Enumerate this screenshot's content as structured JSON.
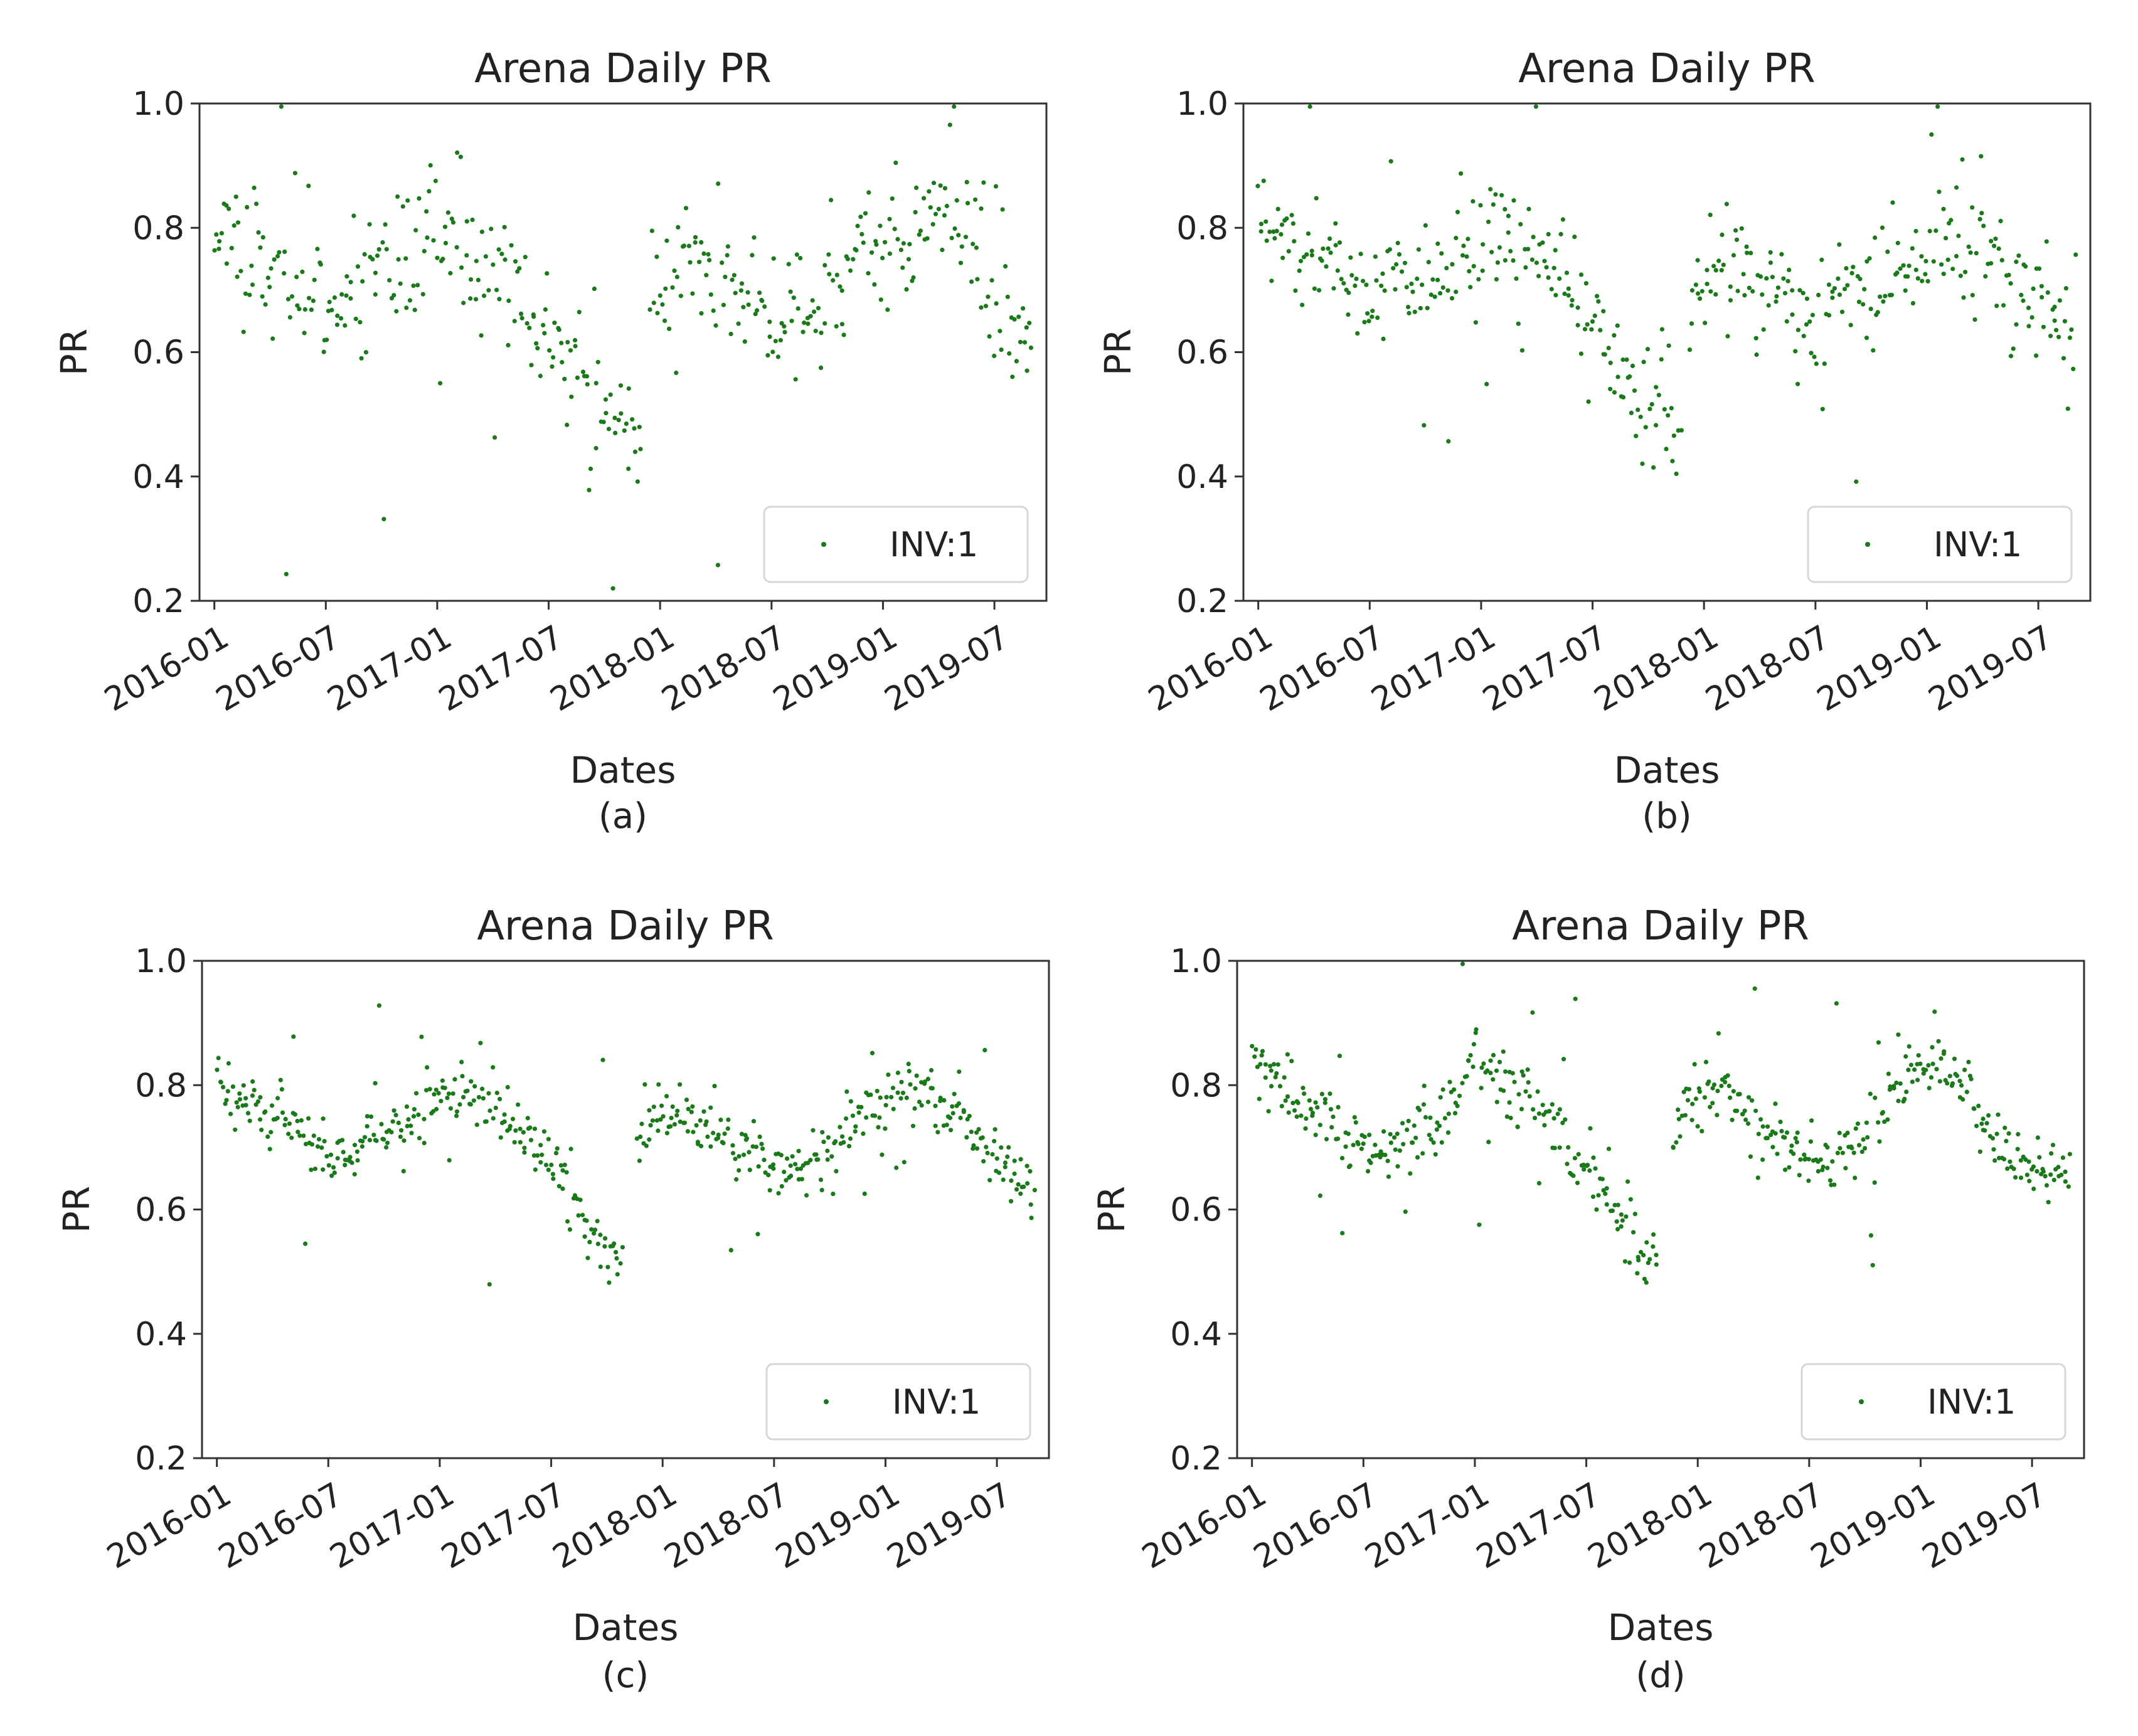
{
  "figure": {
    "panel_labels": [
      "(a)",
      "(b)",
      "(c)",
      "(d)"
    ]
  },
  "chart_data": [
    {
      "type": "scatter",
      "panel": "(a)",
      "title": "Arena Daily PR",
      "xlabel": "Dates",
      "ylabel": "PR",
      "legend": [
        "INV:1"
      ],
      "legend_position": "bottom-right",
      "point_color": "#1a7a1a",
      "x_tick_labels": [
        "2016-01",
        "2016-07",
        "2017-01",
        "2017-07",
        "2018-01",
        "2018-07",
        "2019-01",
        "2019-07"
      ],
      "y_tick_labels": [
        "0.2",
        "0.4",
        "0.6",
        "0.8",
        "1.0"
      ],
      "ylim": [
        0.2,
        1.0
      ],
      "xlim_months": [
        -0.8,
        44.8
      ],
      "series": [
        {
          "name": "INV:1",
          "trend": [
            [
              0,
              0.82
            ],
            [
              1.5,
              0.77
            ],
            [
              3,
              0.73
            ],
            [
              5,
              0.66
            ],
            [
              7,
              0.68
            ],
            [
              10,
              0.72
            ],
            [
              12,
              0.8
            ],
            [
              14,
              0.76
            ],
            [
              16,
              0.72
            ],
            [
              18,
              0.62
            ],
            [
              21,
              0.51
            ],
            [
              22.8,
              0.44
            ],
            [
              23.5,
              0.7
            ],
            [
              25,
              0.76
            ],
            [
              28,
              0.7
            ],
            [
              30,
              0.65
            ],
            [
              32,
              0.66
            ],
            [
              35,
              0.75
            ],
            [
              38,
              0.8
            ],
            [
              40,
              0.85
            ],
            [
              41.5,
              0.72
            ],
            [
              42,
              0.64
            ],
            [
              44,
              0.64
            ]
          ],
          "gaps": [
            [
              23.0,
              23.4
            ]
          ],
          "spread": 0.09,
          "n_points": 430,
          "seed": 11
        }
      ]
    },
    {
      "type": "scatter",
      "panel": "(b)",
      "title": "Arena Daily PR",
      "xlabel": "Dates",
      "ylabel": "PR",
      "legend": [
        "INV:1"
      ],
      "legend_position": "bottom-right",
      "point_color": "#1a7a1a",
      "x_tick_labels": [
        "2016-01",
        "2016-07",
        "2017-01",
        "2017-07",
        "2018-01",
        "2018-07",
        "2019-01",
        "2019-07"
      ],
      "y_tick_labels": [
        "0.2",
        "0.4",
        "0.6",
        "0.8",
        "1.0"
      ],
      "ylim": [
        0.2,
        1.0
      ],
      "xlim_months": [
        -0.8,
        44.8
      ],
      "series": [
        {
          "name": "INV:1",
          "trend": [
            [
              0,
              0.78
            ],
            [
              2,
              0.77
            ],
            [
              4,
              0.74
            ],
            [
              6,
              0.7
            ],
            [
              8,
              0.72
            ],
            [
              10,
              0.73
            ],
            [
              12,
              0.76
            ],
            [
              14,
              0.77
            ],
            [
              16,
              0.72
            ],
            [
              18,
              0.65
            ],
            [
              20,
              0.55
            ],
            [
              22.5,
              0.46
            ],
            [
              23.5,
              0.68
            ],
            [
              25,
              0.75
            ],
            [
              27,
              0.72
            ],
            [
              30,
              0.65
            ],
            [
              32,
              0.7
            ],
            [
              35,
              0.72
            ],
            [
              37,
              0.75
            ],
            [
              39,
              0.77
            ],
            [
              41,
              0.73
            ],
            [
              42,
              0.69
            ],
            [
              44,
              0.64
            ]
          ],
          "gaps": [
            [
              22.8,
              23.2
            ]
          ],
          "spread": 0.08,
          "n_points": 450,
          "seed": 23
        }
      ]
    },
    {
      "type": "scatter",
      "panel": "(c)",
      "title": "Arena Daily PR",
      "xlabel": "Dates",
      "ylabel": "PR",
      "legend": [
        "INV:1"
      ],
      "legend_position": "bottom-right",
      "point_color": "#1a7a1a",
      "x_tick_labels": [
        "2016-01",
        "2016-07",
        "2017-01",
        "2017-07",
        "2018-01",
        "2018-07",
        "2019-01",
        "2019-07"
      ],
      "y_tick_labels": [
        "0.2",
        "0.4",
        "0.6",
        "0.8",
        "1.0"
      ],
      "ylim": [
        0.2,
        1.0
      ],
      "xlim_months": [
        -0.8,
        44.8
      ],
      "series": [
        {
          "name": "INV:1",
          "trend": [
            [
              0,
              0.8
            ],
            [
              2,
              0.78
            ],
            [
              4,
              0.74
            ],
            [
              6,
              0.7
            ],
            [
              7,
              0.68
            ],
            [
              8,
              0.72
            ],
            [
              10,
              0.73
            ],
            [
              12,
              0.79
            ],
            [
              14,
              0.77
            ],
            [
              16,
              0.74
            ],
            [
              18,
              0.67
            ],
            [
              20,
              0.58
            ],
            [
              21.5,
              0.51
            ],
            [
              23,
              0.73
            ],
            [
              25,
              0.76
            ],
            [
              27,
              0.72
            ],
            [
              29,
              0.69
            ],
            [
              31,
              0.66
            ],
            [
              33,
              0.71
            ],
            [
              35,
              0.76
            ],
            [
              37,
              0.78
            ],
            [
              40,
              0.76
            ],
            [
              41,
              0.7
            ],
            [
              44,
              0.65
            ]
          ],
          "gaps": [
            [
              21.8,
              22.6
            ]
          ],
          "spread": 0.045,
          "n_points": 520,
          "seed": 37
        }
      ]
    },
    {
      "type": "scatter",
      "panel": "(d)",
      "title": "Arena Daily PR",
      "xlabel": "Dates",
      "ylabel": "PR",
      "legend": [
        "INV:1"
      ],
      "legend_position": "bottom-right",
      "point_color": "#1a7a1a",
      "x_tick_labels": [
        "2016-01",
        "2016-07",
        "2017-01",
        "2017-07",
        "2018-01",
        "2018-07",
        "2019-01",
        "2019-07"
      ],
      "y_tick_labels": [
        "0.2",
        "0.4",
        "0.6",
        "0.8",
        "1.0"
      ],
      "ylim": [
        0.2,
        1.0
      ],
      "xlim_months": [
        -0.8,
        44.8
      ],
      "series": [
        {
          "name": "INV:1",
          "trend": [
            [
              0,
              0.84
            ],
            [
              2,
              0.79
            ],
            [
              4,
              0.74
            ],
            [
              6,
              0.7
            ],
            [
              7,
              0.68
            ],
            [
              8,
              0.72
            ],
            [
              10,
              0.74
            ],
            [
              12,
              0.85
            ],
            [
              14,
              0.8
            ],
            [
              16,
              0.74
            ],
            [
              18,
              0.66
            ],
            [
              20,
              0.57
            ],
            [
              21.5,
              0.5
            ],
            [
              23,
              0.76
            ],
            [
              25,
              0.8
            ],
            [
              27,
              0.75
            ],
            [
              29,
              0.69
            ],
            [
              31,
              0.66
            ],
            [
              33,
              0.72
            ],
            [
              35,
              0.82
            ],
            [
              37,
              0.84
            ],
            [
              39,
              0.78
            ],
            [
              40,
              0.72
            ],
            [
              41,
              0.69
            ],
            [
              44,
              0.65
            ]
          ],
          "gaps": [
            [
              21.8,
              22.6
            ]
          ],
          "spread": 0.045,
          "n_points": 520,
          "seed": 53
        }
      ]
    }
  ]
}
